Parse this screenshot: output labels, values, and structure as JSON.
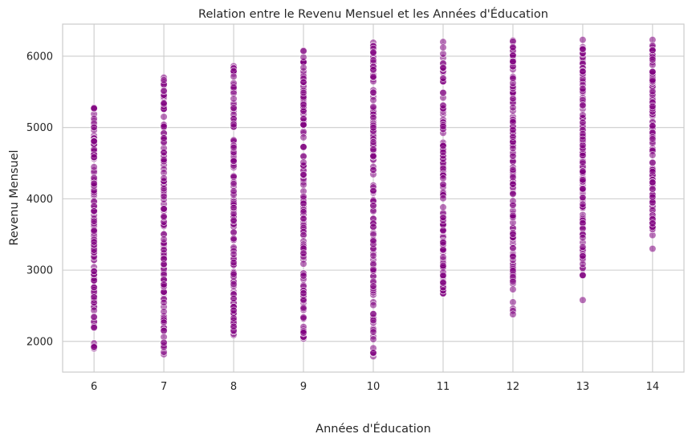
{
  "chart_data": {
    "type": "scatter",
    "title": "Relation entre le Revenu Mensuel et les Années d'Éducation",
    "xlabel": "Années d'Éducation",
    "ylabel": "Revenu Mensuel",
    "xlim": [
      5.55,
      14.45
    ],
    "ylim": [
      1570,
      6450
    ],
    "xticks": [
      6,
      7,
      8,
      9,
      10,
      11,
      12,
      13,
      14
    ],
    "yticks": [
      2000,
      3000,
      4000,
      5000,
      6000
    ],
    "grid": true,
    "color": "#800080",
    "series": [
      {
        "x": 6,
        "y_min": 1900,
        "y_max": 5280,
        "extra_y": []
      },
      {
        "x": 7,
        "y_min": 1820,
        "y_max": 5700,
        "extra_y": []
      },
      {
        "x": 8,
        "y_min": 2090,
        "y_max": 5860,
        "extra_y": []
      },
      {
        "x": 9,
        "y_min": 2040,
        "y_max": 6080,
        "extra_y": []
      },
      {
        "x": 10,
        "y_min": 1790,
        "y_max": 6190,
        "extra_y": []
      },
      {
        "x": 11,
        "y_min": 2670,
        "y_max": 6200,
        "extra_y": []
      },
      {
        "x": 12,
        "y_min": 2810,
        "y_max": 6220,
        "extra_y": [
          2730,
          2550,
          2460,
          2430,
          2380
        ]
      },
      {
        "x": 13,
        "y_min": 2920,
        "y_max": 6230,
        "extra_y": [
          2580
        ]
      },
      {
        "x": 14,
        "y_min": 3560,
        "y_max": 6230,
        "extra_y": [
          3490,
          3300
        ]
      }
    ]
  }
}
